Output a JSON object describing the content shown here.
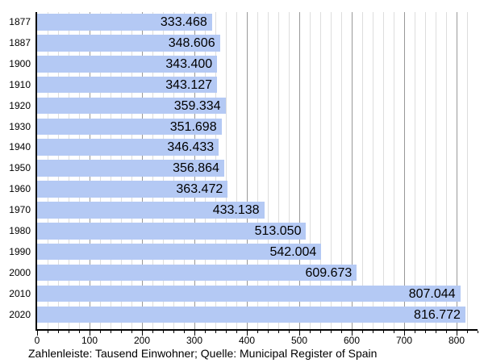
{
  "chart_data": {
    "type": "bar",
    "orientation": "horizontal",
    "categories": [
      "1877",
      "1887",
      "1900",
      "1910",
      "1920",
      "1930",
      "1940",
      "1950",
      "1960",
      "1970",
      "1980",
      "1990",
      "2000",
      "2010",
      "2020"
    ],
    "values": [
      333.468,
      348.606,
      343.4,
      343.127,
      359.334,
      351.698,
      346.433,
      356.864,
      363.472,
      433.138,
      513.05,
      542.004,
      609.673,
      807.044,
      816.772
    ],
    "value_labels": [
      "333.468",
      "348.606",
      "343.400",
      "343.127",
      "359.334",
      "351.698",
      "346.433",
      "356.864",
      "363.472",
      "433.138",
      "513.050",
      "542.004",
      "609.673",
      "807.044",
      "816.772"
    ],
    "x_ticks": [
      0,
      100,
      200,
      300,
      400,
      500,
      600,
      700,
      800
    ],
    "x_minor_step": 20,
    "x_major_step": 100,
    "xlim": [
      0,
      840
    ],
    "grid": true,
    "legend": null,
    "title": "",
    "xlabel": "",
    "ylabel": "",
    "caption": "Zahlenleiste: Tausend Einwohner; Quelle: Municipal Register of Spain",
    "colors": {
      "bar": "#B4C9F4",
      "grid_minor": "#DDDDDD",
      "grid_major": "#999999",
      "axis": "#000000",
      "text": "#000000",
      "background": "#FFFFFF"
    }
  }
}
